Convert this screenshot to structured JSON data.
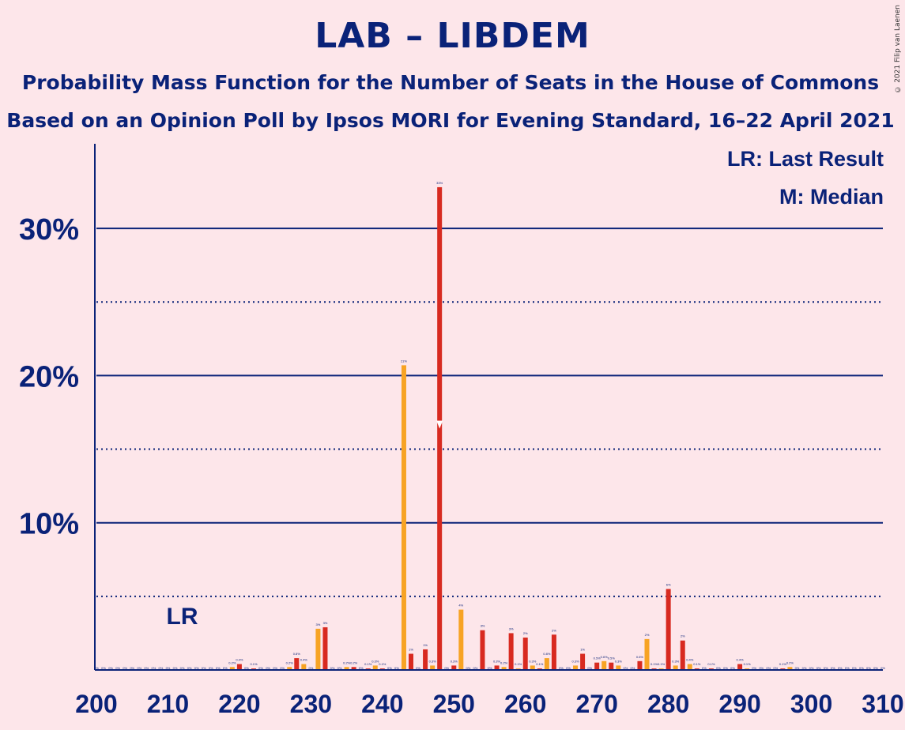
{
  "header": {
    "title": "LAB – LIBDEM",
    "subtitle1": "Probability Mass Function for the Number of Seats in the House of Commons",
    "subtitle2": "Based on an Opinion Poll by Ipsos MORI for Evening Standard, 16–22 April 2021",
    "copyright": "© 2021 Filip van Laenen"
  },
  "legend": {
    "lr": "LR: Last Result",
    "median": "M: Median",
    "placement": "top-right"
  },
  "annotations": {
    "last_result_label": "LR",
    "last_result_seat": 212,
    "median_seat": 248
  },
  "colors": {
    "background": "#fde6ea",
    "text": "#0a2278",
    "lab": "#d82a20",
    "libdem": "#f7a324"
  },
  "chart_data": {
    "type": "bar",
    "xlim": [
      200,
      310
    ],
    "ylim": [
      0,
      35
    ],
    "xticks": [
      "200",
      "210",
      "220",
      "230",
      "240",
      "250",
      "260",
      "270",
      "280",
      "290",
      "300",
      "310"
    ],
    "yticks": [
      {
        "value": 10,
        "label": "10%"
      },
      {
        "value": 20,
        "label": "20%"
      },
      {
        "value": 30,
        "label": "30%"
      }
    ],
    "minor_gridlines": [
      5,
      15,
      25
    ],
    "series": [
      {
        "color": "#d82a20",
        "points": [
          {
            "x": 220,
            "y": 0.4
          },
          {
            "x": 222,
            "y": 0.1
          },
          {
            "x": 228,
            "y": 0.8
          },
          {
            "x": 232,
            "y": 2.9
          },
          {
            "x": 236,
            "y": 0.2
          },
          {
            "x": 238,
            "y": 0.1
          },
          {
            "x": 240,
            "y": 0.1
          },
          {
            "x": 244,
            "y": 1.1
          },
          {
            "x": 246,
            "y": 1.4
          },
          {
            "x": 248,
            "y": 32.8
          },
          {
            "x": 250,
            "y": 0.3
          },
          {
            "x": 254,
            "y": 2.7
          },
          {
            "x": 256,
            "y": 0.3
          },
          {
            "x": 258,
            "y": 2.5
          },
          {
            "x": 260,
            "y": 2.2
          },
          {
            "x": 262,
            "y": 0.1
          },
          {
            "x": 264,
            "y": 2.4
          },
          {
            "x": 268,
            "y": 1.1
          },
          {
            "x": 270,
            "y": 0.5
          },
          {
            "x": 272,
            "y": 0.5
          },
          {
            "x": 276,
            "y": 0.6
          },
          {
            "x": 278,
            "y": 0.1
          },
          {
            "x": 280,
            "y": 5.5
          },
          {
            "x": 282,
            "y": 2.0
          },
          {
            "x": 284,
            "y": 0.1
          },
          {
            "x": 286,
            "y": 0.1
          },
          {
            "x": 290,
            "y": 0.4
          },
          {
            "x": 296,
            "y": 0.1
          }
        ]
      },
      {
        "color": "#f7a324",
        "points": [
          {
            "x": 219,
            "y": 0.2
          },
          {
            "x": 227,
            "y": 0.2
          },
          {
            "x": 229,
            "y": 0.4
          },
          {
            "x": 231,
            "y": 2.8
          },
          {
            "x": 235,
            "y": 0.2
          },
          {
            "x": 239,
            "y": 0.3
          },
          {
            "x": 243,
            "y": 20.7
          },
          {
            "x": 247,
            "y": 0.3
          },
          {
            "x": 251,
            "y": 4.1
          },
          {
            "x": 257,
            "y": 0.2
          },
          {
            "x": 259,
            "y": 0.1
          },
          {
            "x": 261,
            "y": 0.3
          },
          {
            "x": 263,
            "y": 0.8
          },
          {
            "x": 267,
            "y": 0.3
          },
          {
            "x": 271,
            "y": 0.6
          },
          {
            "x": 273,
            "y": 0.3
          },
          {
            "x": 277,
            "y": 2.1
          },
          {
            "x": 279,
            "y": 0.1
          },
          {
            "x": 281,
            "y": 0.3
          },
          {
            "x": 283,
            "y": 0.4
          },
          {
            "x": 291,
            "y": 0.1
          },
          {
            "x": 297,
            "y": 0.2
          }
        ]
      }
    ]
  }
}
